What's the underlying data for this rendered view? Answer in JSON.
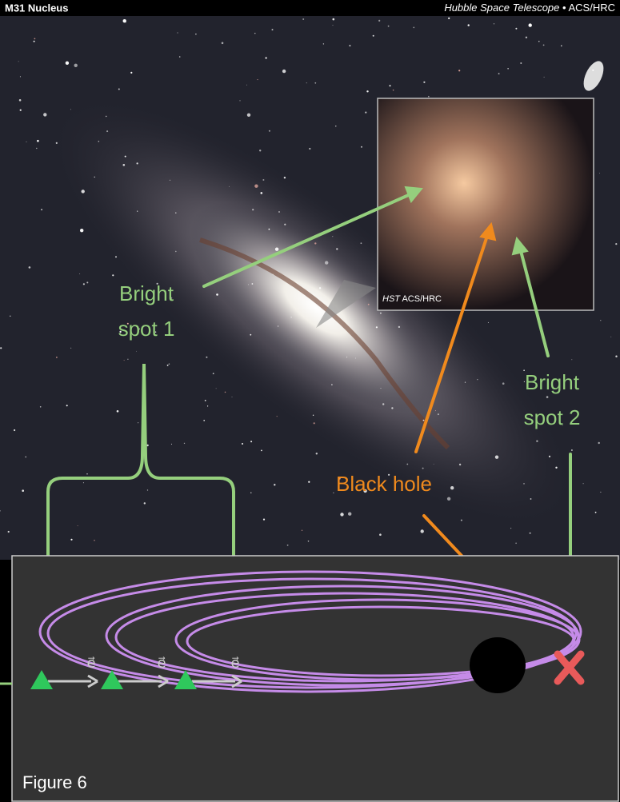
{
  "header": {
    "title": "M31 Nucleus",
    "telescope": "Hubble Space Telescope",
    "separator": "•",
    "instrument": "ACS/HRC"
  },
  "inset": {
    "telescope": "HST",
    "instrument": "ACS/HRC"
  },
  "annotations": {
    "bright_spot_1": [
      "Bright",
      "spot 1"
    ],
    "bright_spot_2": [
      "Bright",
      "spot 2"
    ],
    "black_hole": "Black hole"
  },
  "diagram": {
    "vector_labels": [
      "e⃗",
      "e⃗",
      "e⃗"
    ],
    "caption": "Figure 6"
  }
}
